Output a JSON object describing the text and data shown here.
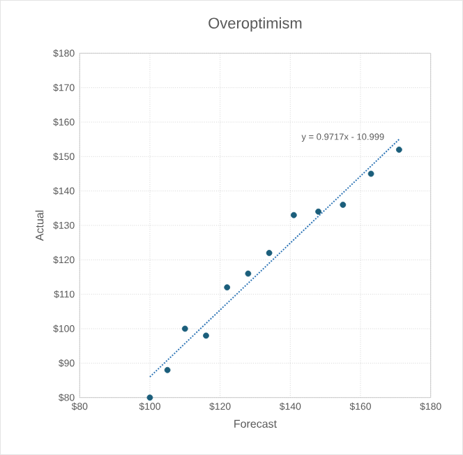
{
  "chart_data": {
    "type": "scatter",
    "title": "Overoptimism",
    "xlabel": "Forecast",
    "ylabel": "Actual",
    "xlim": [
      80,
      180
    ],
    "ylim": [
      80,
      180
    ],
    "xticks": [
      {
        "value": 80,
        "label": "$80"
      },
      {
        "value": 100,
        "label": "$100"
      },
      {
        "value": 120,
        "label": "$120"
      },
      {
        "value": 140,
        "label": "$140"
      },
      {
        "value": 160,
        "label": "$160"
      },
      {
        "value": 180,
        "label": "$180"
      }
    ],
    "yticks": [
      {
        "value": 80,
        "label": "$80"
      },
      {
        "value": 90,
        "label": "$90"
      },
      {
        "value": 100,
        "label": "$100"
      },
      {
        "value": 110,
        "label": "$110"
      },
      {
        "value": 120,
        "label": "$120"
      },
      {
        "value": 130,
        "label": "$130"
      },
      {
        "value": 140,
        "label": "$140"
      },
      {
        "value": 150,
        "label": "$150"
      },
      {
        "value": 160,
        "label": "$160"
      },
      {
        "value": 170,
        "label": "$170"
      },
      {
        "value": 180,
        "label": "$180"
      }
    ],
    "grid": true,
    "marker": "circle",
    "series": [
      {
        "type": "scatter",
        "color": "#1b5e7b",
        "x": [
          100,
          105,
          110,
          116,
          122,
          128,
          134,
          141,
          148,
          155,
          163,
          171
        ],
        "values": [
          80,
          88,
          100,
          98,
          112,
          116,
          122,
          133,
          134,
          136,
          145,
          152
        ]
      },
      {
        "type": "line",
        "marker": "none",
        "color": "#2e75b6",
        "line_style": "dotted",
        "x": [
          100,
          171
        ],
        "values": [
          86,
          155
        ]
      }
    ],
    "annotations": [
      "y = 0.9717x - 10.999"
    ]
  }
}
